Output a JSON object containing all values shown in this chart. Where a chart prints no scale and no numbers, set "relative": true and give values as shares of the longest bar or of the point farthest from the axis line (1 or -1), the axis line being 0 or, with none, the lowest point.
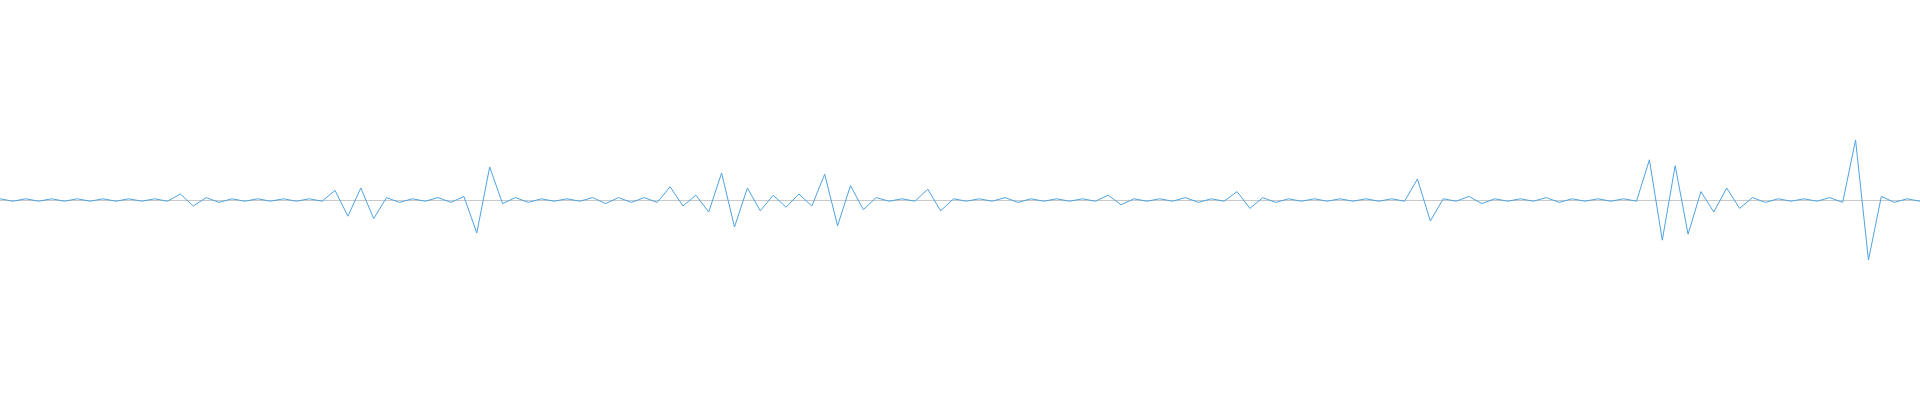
{
  "chart_data": {
    "type": "line",
    "relative": true,
    "color": "#4fa3e0",
    "marker": "none",
    "line_style": "solid",
    "categories": [
      null,
      null,
      null,
      null,
      null,
      null,
      null,
      null,
      null,
      null,
      null,
      null,
      null,
      null,
      null,
      null,
      null,
      null,
      null,
      null,
      null,
      null,
      null,
      null,
      null,
      null,
      null,
      null,
      null,
      null,
      null,
      null,
      null,
      null,
      null,
      null,
      null,
      null,
      null,
      null,
      null,
      null,
      null,
      null,
      null,
      null,
      null,
      null,
      null,
      null,
      null,
      null,
      null,
      null,
      null,
      null,
      null,
      null,
      null,
      null,
      null,
      null,
      null,
      null,
      null,
      null,
      null,
      null,
      null,
      null,
      null,
      null,
      null,
      null,
      null,
      null,
      null,
      null,
      null,
      null,
      null,
      null,
      null,
      null,
      null,
      null,
      null,
      null,
      null,
      null,
      null,
      null,
      null,
      null,
      null,
      null,
      null,
      null,
      null,
      null,
      null,
      null,
      null,
      null,
      null,
      null,
      null,
      null,
      null,
      null,
      null,
      null,
      null,
      null,
      null,
      null,
      null,
      null,
      null,
      null,
      null,
      null,
      null,
      null,
      null,
      null,
      null,
      null,
      null,
      null,
      null,
      null,
      null,
      null,
      null,
      null,
      null,
      null,
      null,
      null,
      null,
      null,
      null,
      null,
      null,
      null,
      null,
      null,
      null,
      null
    ],
    "values": [
      0.02,
      -0.02,
      0.02,
      -0.02,
      0.02,
      -0.02,
      0.02,
      -0.02,
      0.02,
      -0.02,
      0.02,
      -0.02,
      0.02,
      -0.02,
      0.1,
      -0.1,
      0.04,
      -0.04,
      0.02,
      -0.02,
      0.02,
      -0.02,
      0.02,
      -0.02,
      0.02,
      -0.02,
      0.16,
      -0.27,
      0.2,
      -0.31,
      0.04,
      -0.04,
      0.02,
      -0.02,
      0.04,
      -0.04,
      0.06,
      -0.55,
      0.55,
      -0.06,
      0.04,
      -0.04,
      0.02,
      -0.02,
      0.02,
      -0.02,
      0.04,
      -0.06,
      0.04,
      -0.04,
      0.04,
      -0.04,
      0.22,
      -0.1,
      0.08,
      -0.2,
      0.45,
      -0.45,
      0.2,
      -0.18,
      0.08,
      -0.12,
      0.1,
      -0.1,
      0.43,
      -0.43,
      0.24,
      -0.16,
      0.04,
      -0.02,
      0.02,
      -0.02,
      0.18,
      -0.18,
      0.02,
      -0.02,
      0.02,
      -0.02,
      0.04,
      -0.04,
      0.02,
      -0.02,
      0.02,
      -0.02,
      0.02,
      -0.02,
      0.08,
      -0.08,
      0.02,
      -0.02,
      0.02,
      -0.02,
      0.04,
      -0.04,
      0.02,
      -0.02,
      0.14,
      -0.14,
      0.04,
      -0.04,
      0.02,
      -0.02,
      0.02,
      -0.02,
      0.02,
      -0.02,
      0.02,
      -0.02,
      0.02,
      -0.02,
      0.35,
      -0.35,
      0.02,
      -0.02,
      0.06,
      -0.06,
      0.02,
      -0.02,
      0.02,
      -0.02,
      0.04,
      -0.04,
      0.02,
      -0.02,
      0.02,
      -0.02,
      0.02,
      -0.02,
      0.67,
      -0.67,
      0.57,
      -0.57,
      0.14,
      -0.2,
      0.2,
      -0.14,
      0.04,
      -0.04,
      0.02,
      -0.02,
      0.02,
      -0.02,
      0.04,
      -0.04,
      1,
      -1,
      0.06,
      -0.04,
      0.02,
      -0.02
    ]
  }
}
